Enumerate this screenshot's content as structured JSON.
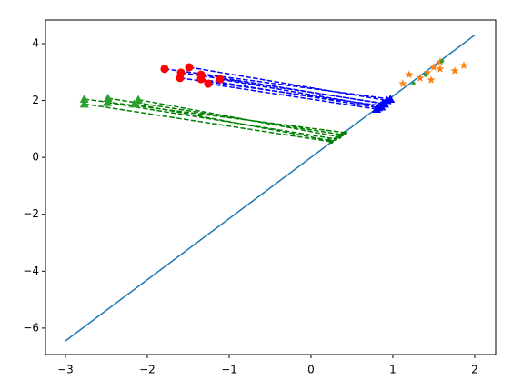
{
  "chart_data": {
    "type": "line",
    "xlim": [
      -3.244,
      2.256
    ],
    "ylim": [
      -6.93,
      4.83
    ],
    "xticks": [
      {
        "value": -3,
        "label": "−3"
      },
      {
        "value": -2,
        "label": "−2"
      },
      {
        "value": -1,
        "label": "−1"
      },
      0,
      1,
      2
    ],
    "yticks": [
      {
        "value": -6,
        "label": "−6"
      },
      {
        "value": -4,
        "label": "−4"
      },
      {
        "value": -2,
        "label": "−2"
      },
      0,
      2,
      4
    ],
    "series": [
      {
        "color": "#1f77b4",
        "linestyle": "solid",
        "x": [
          -3,
          2
        ],
        "values": [
          -6.45,
          4.3
        ]
      },
      {
        "color": "#0000ff",
        "linestyle": "dashed",
        "x": [
          -1.789,
          0.97,
          null,
          -1.489,
          0.93,
          null,
          -1.589,
          0.88,
          null,
          -1.6,
          0.85,
          null,
          -1.344,
          0.9,
          null,
          -1.344,
          0.82,
          null,
          -1.111,
          0.86,
          null,
          -1.256,
          0.8
        ],
        "values": [
          3.11,
          2.05,
          null,
          3.17,
          2.0,
          null,
          2.98,
          1.9,
          null,
          2.79,
          1.82,
          null,
          2.91,
          1.88,
          null,
          2.75,
          1.75,
          null,
          2.75,
          1.78,
          null,
          2.59,
          1.7
        ]
      },
      {
        "color": "#ff0000",
        "marker": "o",
        "x": [
          -1.789,
          -1.489,
          -1.589,
          -1.6,
          -1.344,
          -1.344,
          -1.111,
          -1.256
        ],
        "values": [
          3.11,
          3.17,
          2.98,
          2.79,
          2.91,
          2.75,
          2.75,
          2.59
        ]
      },
      {
        "color": "#0000ff",
        "marker": "^",
        "x": [
          0.97,
          0.93,
          0.88,
          0.85,
          0.9,
          0.82,
          0.86,
          0.8
        ],
        "values": [
          2.05,
          2.0,
          1.9,
          1.82,
          1.88,
          1.75,
          1.78,
          1.7
        ]
      },
      {
        "color": "#008000",
        "linestyle": "dashed",
        "x": [
          -2.77,
          0.42,
          null,
          -2.77,
          0.25,
          null,
          -2.48,
          0.38,
          null,
          -2.49,
          0.3,
          null,
          -2.11,
          0.35,
          null,
          -2.16,
          0.22
        ],
        "values": [
          2.05,
          0.87,
          null,
          1.88,
          0.55,
          null,
          2.08,
          0.8,
          null,
          1.93,
          0.65,
          null,
          2.03,
          0.72,
          null,
          1.88,
          0.6
        ]
      },
      {
        "color": "#2ca02c",
        "marker": "^",
        "x": [
          -2.77,
          -2.77,
          -2.48,
          -2.49,
          -2.11,
          -2.16
        ],
        "values": [
          2.05,
          1.88,
          2.08,
          1.93,
          2.03,
          1.88
        ]
      },
      {
        "color": "#008000",
        "marker": ".",
        "x": [
          0.42,
          0.25,
          0.38,
          0.3,
          0.35,
          0.22
        ],
        "values": [
          0.87,
          0.55,
          0.8,
          0.65,
          0.72,
          0.6
        ]
      },
      {
        "color": "#ff7f0e",
        "marker": "*",
        "x": [
          1.122,
          1.2,
          1.333,
          1.422,
          1.467,
          1.578,
          1.578,
          1.756,
          1.867,
          1.5
        ],
        "values": [
          2.59,
          2.91,
          2.79,
          2.98,
          2.72,
          3.36,
          3.11,
          3.04,
          3.23,
          3.17
        ]
      },
      {
        "color": "#2ca02c",
        "marker": ".",
        "x": [
          1.25,
          1.6,
          1.4
        ],
        "values": [
          2.6,
          3.38,
          2.9
        ]
      }
    ]
  }
}
